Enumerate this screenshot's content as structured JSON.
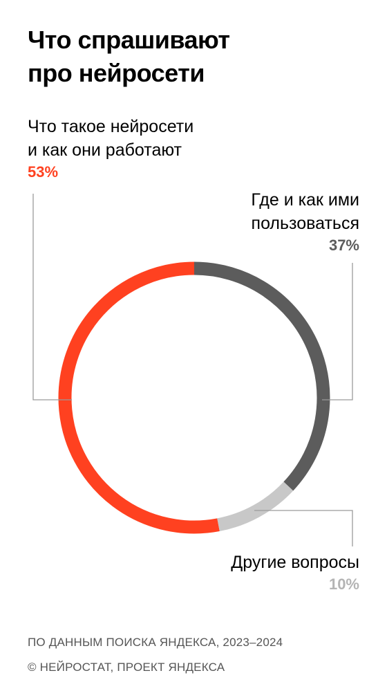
{
  "header": {
    "title_line1": "Что спрашивают",
    "title_line2": "про нейросети"
  },
  "chart_data": {
    "type": "pie",
    "style": "donut",
    "title": "Что спрашивают про нейросети",
    "slices": [
      {
        "label_lines": [
          "Что такое нейросети",
          "и как они работают"
        ],
        "value": 53,
        "value_label": "53%",
        "color": "#FF4120",
        "label_color": "#FF4120"
      },
      {
        "label_lines": [
          "Где и как ими",
          "пользоваться"
        ],
        "value": 37,
        "value_label": "37%",
        "color": "#5C5C5C",
        "label_color": "#5C5C5C"
      },
      {
        "label_lines": [
          "Другие вопросы"
        ],
        "value": 10,
        "value_label": "10%",
        "color": "#C8C8C8",
        "label_color": "#B4B4B4"
      }
    ],
    "start": "top",
    "direction": "counterclockwise-from-top for first slice"
  },
  "footer": {
    "source": "ПО ДАННЫМ ПОИСКА ЯНДЕКСА, 2023–2024",
    "copyright": "© НЕЙРОСТАТ, ПРОЕКТ ЯНДЕКСА"
  }
}
